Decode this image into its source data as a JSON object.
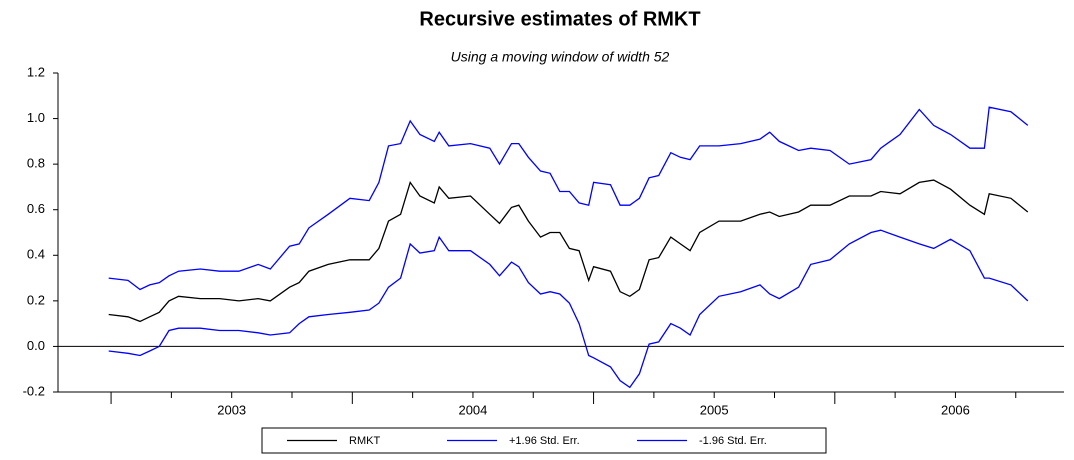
{
  "chart_data": {
    "type": "line",
    "title": "Recursive estimates of RMKT",
    "subtitle": "Using a moving window of width 52",
    "x": [
      2002.99,
      2003.07,
      2003.12,
      2003.16,
      2003.2,
      2003.24,
      2003.28,
      2003.37,
      2003.45,
      2003.53,
      2003.61,
      2003.66,
      2003.74,
      2003.78,
      2003.82,
      2003.9,
      2003.99,
      2004.07,
      2004.11,
      2004.15,
      2004.2,
      2004.24,
      2004.28,
      2004.34,
      2004.36,
      2004.4,
      2004.49,
      2004.57,
      2004.61,
      2004.66,
      2004.69,
      2004.73,
      2004.78,
      2004.82,
      2004.86,
      2004.9,
      2004.94,
      2004.98,
      2005.0,
      2005.07,
      2005.11,
      2005.15,
      2005.19,
      2005.23,
      2005.27,
      2005.32,
      2005.36,
      2005.4,
      2005.44,
      2005.52,
      2005.61,
      2005.69,
      2005.73,
      2005.77,
      2005.85,
      2005.9,
      2005.98,
      2006.06,
      2006.15,
      2006.19,
      2006.27,
      2006.35,
      2006.41,
      2006.48,
      2006.56,
      2006.62,
      2006.64,
      2006.73,
      2006.8
    ],
    "series": [
      {
        "name": "RMKT",
        "color": "#000000",
        "values": [
          0.14,
          0.13,
          0.11,
          0.13,
          0.15,
          0.2,
          0.22,
          0.21,
          0.21,
          0.2,
          0.21,
          0.2,
          0.26,
          0.28,
          0.33,
          0.36,
          0.38,
          0.38,
          0.43,
          0.55,
          0.58,
          0.72,
          0.66,
          0.63,
          0.7,
          0.65,
          0.66,
          0.58,
          0.54,
          0.61,
          0.62,
          0.55,
          0.48,
          0.5,
          0.5,
          0.43,
          0.42,
          0.29,
          0.35,
          0.33,
          0.24,
          0.22,
          0.25,
          0.38,
          0.39,
          0.48,
          0.45,
          0.42,
          0.5,
          0.55,
          0.55,
          0.58,
          0.59,
          0.57,
          0.59,
          0.62,
          0.62,
          0.66,
          0.66,
          0.68,
          0.67,
          0.72,
          0.73,
          0.69,
          0.62,
          0.58,
          0.67,
          0.65,
          0.59
        ]
      },
      {
        "name": "+1.96 Std. Err.",
        "color": "#0000ff",
        "values": [
          0.3,
          0.29,
          0.25,
          0.27,
          0.28,
          0.31,
          0.33,
          0.34,
          0.33,
          0.33,
          0.36,
          0.34,
          0.44,
          0.45,
          0.52,
          0.58,
          0.65,
          0.64,
          0.72,
          0.88,
          0.89,
          0.99,
          0.93,
          0.9,
          0.94,
          0.88,
          0.89,
          0.87,
          0.8,
          0.89,
          0.89,
          0.83,
          0.77,
          0.76,
          0.68,
          0.68,
          0.63,
          0.62,
          0.72,
          0.71,
          0.62,
          0.62,
          0.65,
          0.74,
          0.75,
          0.85,
          0.83,
          0.82,
          0.88,
          0.88,
          0.89,
          0.91,
          0.94,
          0.9,
          0.86,
          0.87,
          0.86,
          0.8,
          0.82,
          0.87,
          0.93,
          1.04,
          0.97,
          0.93,
          0.87,
          0.87,
          1.05,
          1.03,
          0.97
        ]
      },
      {
        "name": "-1.96 Std. Err.",
        "color": "#0000ff",
        "values": [
          -0.02,
          -0.03,
          -0.04,
          -0.02,
          0.0,
          0.07,
          0.08,
          0.08,
          0.07,
          0.07,
          0.06,
          0.05,
          0.06,
          0.1,
          0.13,
          0.14,
          0.15,
          0.16,
          0.19,
          0.26,
          0.3,
          0.45,
          0.41,
          0.42,
          0.48,
          0.42,
          0.42,
          0.36,
          0.31,
          0.37,
          0.35,
          0.28,
          0.23,
          0.24,
          0.23,
          0.19,
          0.1,
          -0.04,
          -0.05,
          -0.09,
          -0.15,
          -0.18,
          -0.12,
          0.01,
          0.02,
          0.1,
          0.08,
          0.05,
          0.14,
          0.22,
          0.24,
          0.27,
          0.23,
          0.21,
          0.26,
          0.36,
          0.38,
          0.45,
          0.5,
          0.51,
          0.48,
          0.45,
          0.43,
          0.47,
          0.42,
          0.3,
          0.3,
          0.27,
          0.2
        ]
      }
    ],
    "xlim": [
      2002.78,
      2006.95
    ],
    "xticks": [
      {
        "value": 2003.5,
        "label": "2003"
      },
      {
        "value": 2004.5,
        "label": "2004"
      },
      {
        "value": 2005.5,
        "label": "2005"
      },
      {
        "value": 2006.5,
        "label": "2006"
      }
    ],
    "ylim": [
      -0.2,
      1.2
    ],
    "yticks": [
      -0.2,
      {
        "value": 0,
        "label": "0.0"
      },
      0.2,
      0.4,
      0.6,
      0.8,
      {
        "value": 1,
        "label": "1.0"
      },
      1.2
    ],
    "zero_line": true,
    "legend": "bottom"
  }
}
